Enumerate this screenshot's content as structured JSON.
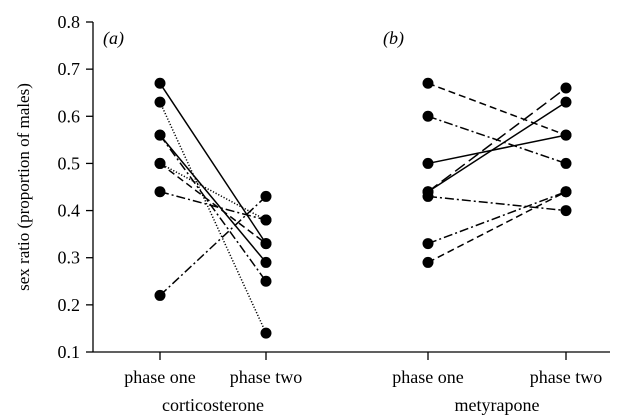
{
  "chart_data": {
    "type": "line",
    "ylabel": "sex ratio (proportion of males)",
    "ylim": [
      0.1,
      0.8
    ],
    "yticks": [
      "0.1",
      "0.2",
      "0.3",
      "0.4",
      "0.5",
      "0.6",
      "0.7",
      "0.8"
    ],
    "grid": false,
    "panels": [
      {
        "label": "(a)",
        "treatment": "corticosterone",
        "categories": [
          "phase one",
          "phase two"
        ],
        "series": [
          {
            "values": [
              0.67,
              0.33
            ],
            "dash": "solid"
          },
          {
            "values": [
              0.63,
              0.14
            ],
            "dash": "dotted"
          },
          {
            "values": [
              0.56,
              0.29
            ],
            "dash": "solid"
          },
          {
            "values": [
              0.56,
              0.25
            ],
            "dash": "dashdot"
          },
          {
            "values": [
              0.5,
              0.33
            ],
            "dash": "dashed"
          },
          {
            "values": [
              0.5,
              0.38
            ],
            "dash": "dotted"
          },
          {
            "values": [
              0.44,
              0.38
            ],
            "dash": "dashdot"
          },
          {
            "values": [
              0.22,
              0.43
            ],
            "dash": "dashdot"
          }
        ]
      },
      {
        "label": "(b)",
        "treatment": "metyrapone",
        "categories": [
          "phase one",
          "phase two"
        ],
        "series": [
          {
            "values": [
              0.67,
              0.56
            ],
            "dash": "dashed"
          },
          {
            "values": [
              0.6,
              0.5
            ],
            "dash": "dashdot"
          },
          {
            "values": [
              0.5,
              0.56
            ],
            "dash": "solid"
          },
          {
            "values": [
              0.44,
              0.66
            ],
            "dash": "longdash"
          },
          {
            "values": [
              0.44,
              0.63
            ],
            "dash": "solid"
          },
          {
            "values": [
              0.43,
              0.4
            ],
            "dash": "dashdot"
          },
          {
            "values": [
              0.33,
              0.44
            ],
            "dash": "dashdot"
          },
          {
            "values": [
              0.29,
              0.44
            ],
            "dash": "dashed"
          }
        ]
      }
    ]
  }
}
